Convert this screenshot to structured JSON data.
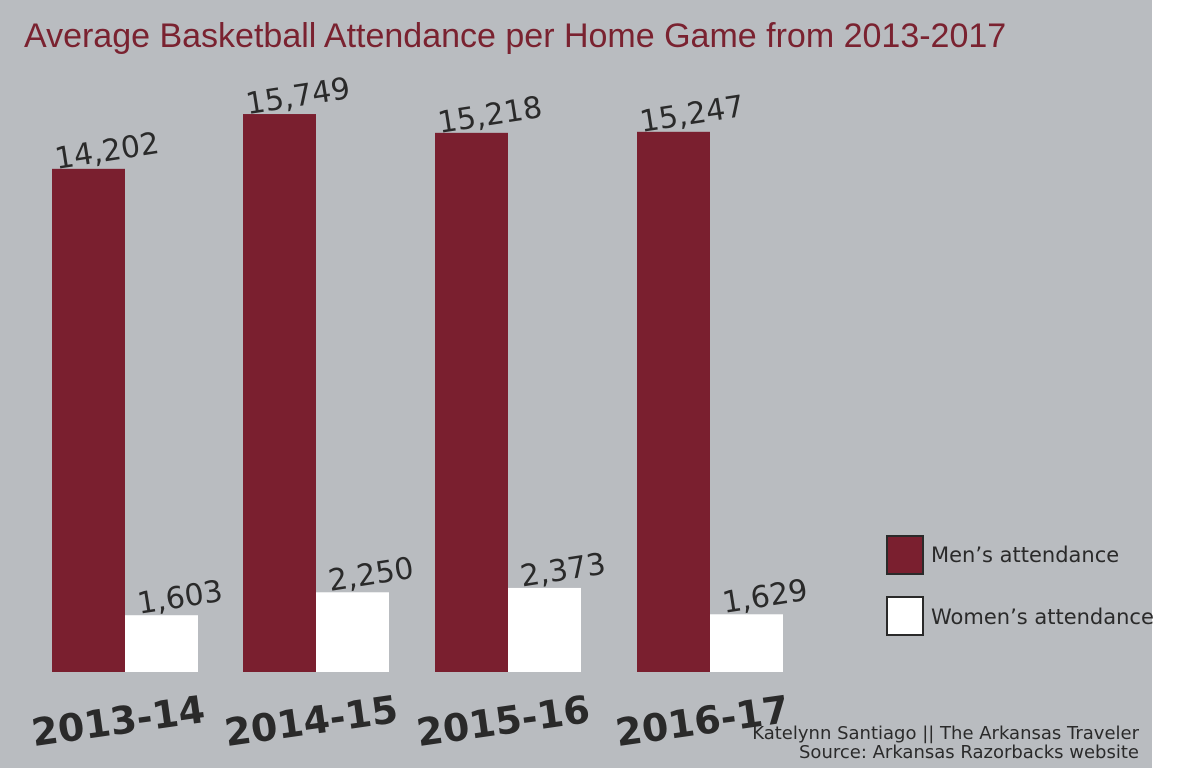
{
  "chart_data": {
    "type": "bar",
    "title": "Average Basketball Attendance per Home Game from 2013-2017",
    "categories": [
      "2013-14",
      "2014-15",
      "2015-16",
      "2016-17"
    ],
    "series": [
      {
        "name": "Men’s attendance",
        "color": "#7a1f2f",
        "values": [
          14202,
          15749,
          15218,
          15247
        ]
      },
      {
        "name": "Women’s attendance",
        "color": "#ffffff",
        "values": [
          1603,
          2250,
          2373,
          1629
        ]
      }
    ],
    "value_labels": [
      [
        "14,202",
        "15,749",
        "15,218",
        "15,247"
      ],
      [
        "1,603",
        "2,250",
        "2,373",
        "1,629"
      ]
    ],
    "ylim": [
      0,
      17500
    ],
    "grid": false,
    "legend_position": "right",
    "background_color": "#b9bcc0"
  },
  "credit": {
    "line1": "Katelynn Santiago || The Arkansas Traveler",
    "line2": "Source: Arkansas Razorbacks website"
  }
}
